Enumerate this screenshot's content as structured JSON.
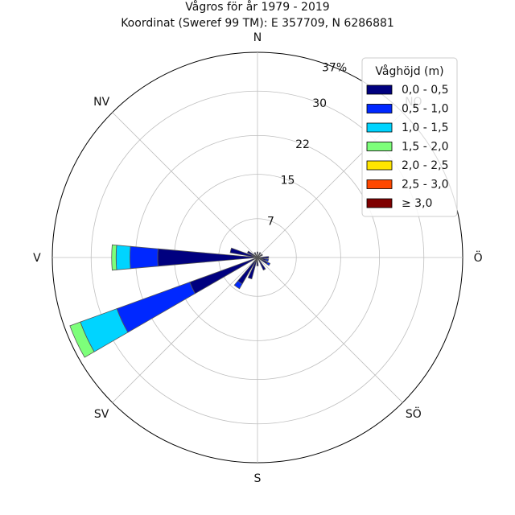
{
  "chart_data": {
    "type": "windrose",
    "title_line1": "Vågros för år 1979 - 2019",
    "title_line2": "Koordinat (Sweref 99 TM): E 357709, N 6286881",
    "directions": [
      "N",
      "NO",
      "Ö",
      "SÖ",
      "S",
      "SV",
      "V",
      "NV"
    ],
    "direction_angles_deg": [
      0,
      45,
      90,
      135,
      180,
      225,
      270,
      315
    ],
    "rmax": 37,
    "ring_ticks": [
      "7",
      "15",
      "22",
      "30",
      "37%"
    ],
    "ring_values": [
      7,
      15,
      22,
      30,
      37
    ],
    "sector_width_deg": 10,
    "legend": {
      "title": "Våghöjd (m)",
      "placement": "top-right",
      "bins": [
        "0,0 - 0,5",
        "0,5 - 1,0",
        "1,0 - 1,5",
        "1,5 - 2,0",
        "2,0 - 2,5",
        "2,5 - 3,0",
        "≥ 3,0"
      ],
      "colors": [
        "#00007f",
        "#0028ff",
        "#00d4ff",
        "#7dff7a",
        "#ffe500",
        "#ff4800",
        "#7f0000"
      ]
    },
    "series": [
      {
        "direction_deg": 0,
        "values": [
          1.0,
          0,
          0,
          0,
          0,
          0,
          0
        ]
      },
      {
        "direction_deg": 30,
        "values": [
          1.0,
          0,
          0,
          0,
          0,
          0,
          0
        ]
      },
      {
        "direction_deg": 60,
        "values": [
          1.0,
          0,
          0,
          0,
          0,
          0,
          0
        ]
      },
      {
        "direction_deg": 90,
        "values": [
          2.0,
          0,
          0,
          0,
          0,
          0,
          0
        ]
      },
      {
        "direction_deg": 105,
        "values": [
          1.5,
          0.5,
          0,
          0,
          0,
          0,
          0
        ]
      },
      {
        "direction_deg": 120,
        "values": [
          2.0,
          0.5,
          0,
          0,
          0,
          0,
          0
        ]
      },
      {
        "direction_deg": 150,
        "values": [
          2.5,
          0,
          0,
          0,
          0,
          0,
          0
        ]
      },
      {
        "direction_deg": 180,
        "values": [
          1.5,
          0,
          0,
          0,
          0,
          0,
          0
        ]
      },
      {
        "direction_deg": 200,
        "values": [
          4.0,
          0,
          0,
          0,
          0,
          0,
          0
        ]
      },
      {
        "direction_deg": 215,
        "values": [
          5.5,
          1.0,
          0,
          0,
          0,
          0,
          0
        ]
      },
      {
        "direction_deg": 245,
        "values": [
          13.0,
          14.0,
          7.0,
          2.0,
          0,
          0,
          0
        ]
      },
      {
        "direction_deg": 270,
        "values": [
          18.0,
          5.0,
          2.5,
          0.8,
          0,
          0,
          0
        ]
      },
      {
        "direction_deg": 285,
        "values": [
          5.0,
          0,
          0,
          0,
          0,
          0,
          0
        ]
      },
      {
        "direction_deg": 300,
        "values": [
          2.0,
          0,
          0,
          0,
          0,
          0,
          0
        ]
      },
      {
        "direction_deg": 330,
        "values": [
          1.0,
          0,
          0,
          0,
          0,
          0,
          0
        ]
      }
    ]
  }
}
